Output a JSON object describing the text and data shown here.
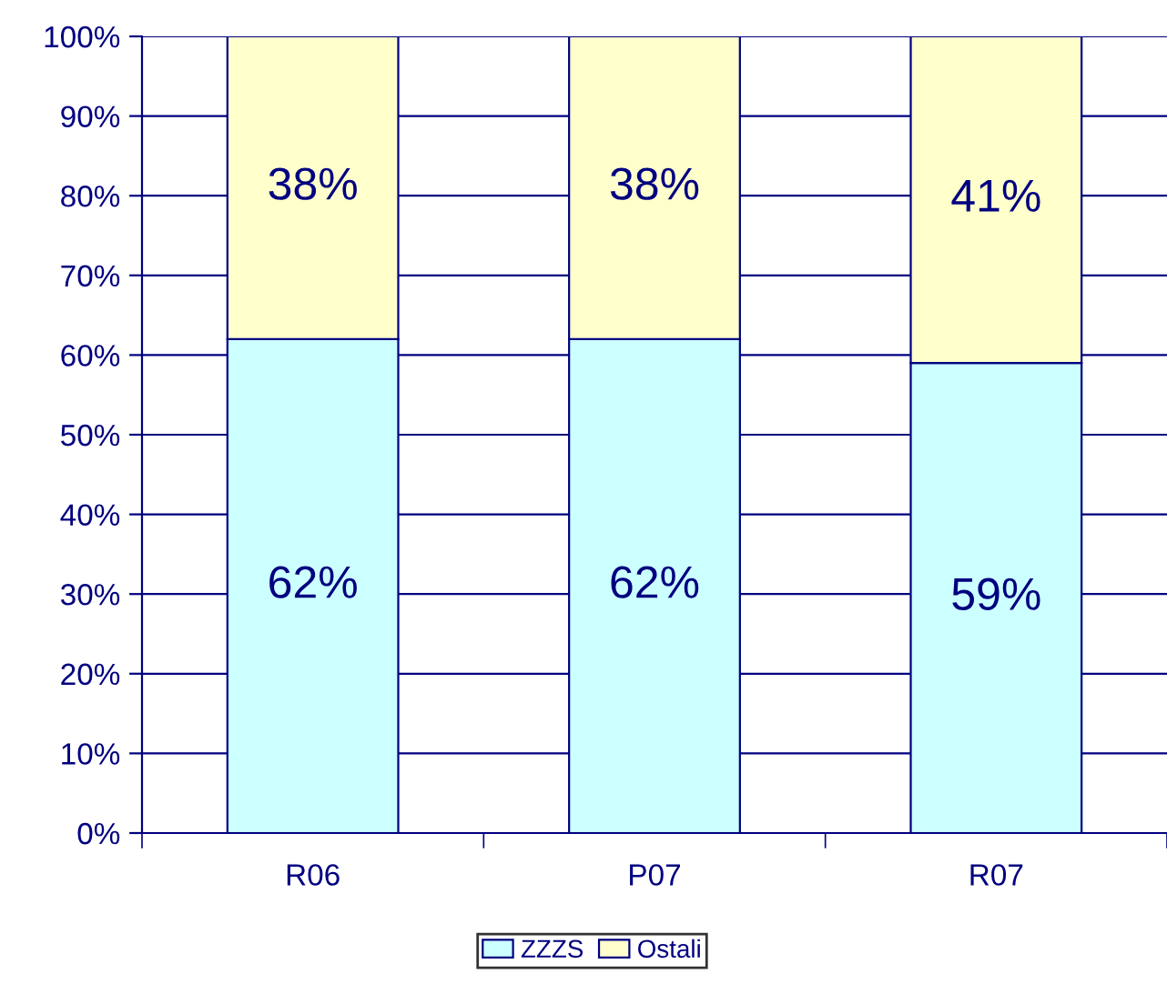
{
  "chart_data": {
    "type": "bar",
    "stacked": true,
    "categories": [
      "R06",
      "P07",
      "R07"
    ],
    "series": [
      {
        "name": "ZZZS",
        "color": "#ccffff",
        "values": [
          62,
          62,
          59
        ],
        "value_labels": [
          "62%",
          "62%",
          "59%"
        ]
      },
      {
        "name": "Ostali",
        "color": "#ffffcc",
        "values": [
          38,
          38,
          41
        ],
        "value_labels": [
          "38%",
          "38%",
          "41%"
        ]
      }
    ],
    "ylim": [
      0,
      100
    ],
    "yticks": [
      {
        "value": 0,
        "label": "0%"
      },
      {
        "value": 10,
        "label": "10%"
      },
      {
        "value": 20,
        "label": "20%"
      },
      {
        "value": 30,
        "label": "30%"
      },
      {
        "value": 40,
        "label": "40%"
      },
      {
        "value": 50,
        "label": "50%"
      },
      {
        "value": 60,
        "label": "60%"
      },
      {
        "value": 70,
        "label": "70%"
      },
      {
        "value": 80,
        "label": "80%"
      },
      {
        "value": 90,
        "label": "90%"
      },
      {
        "value": 100,
        "label": "100%"
      }
    ],
    "grid": "y",
    "legend": "bottom"
  }
}
